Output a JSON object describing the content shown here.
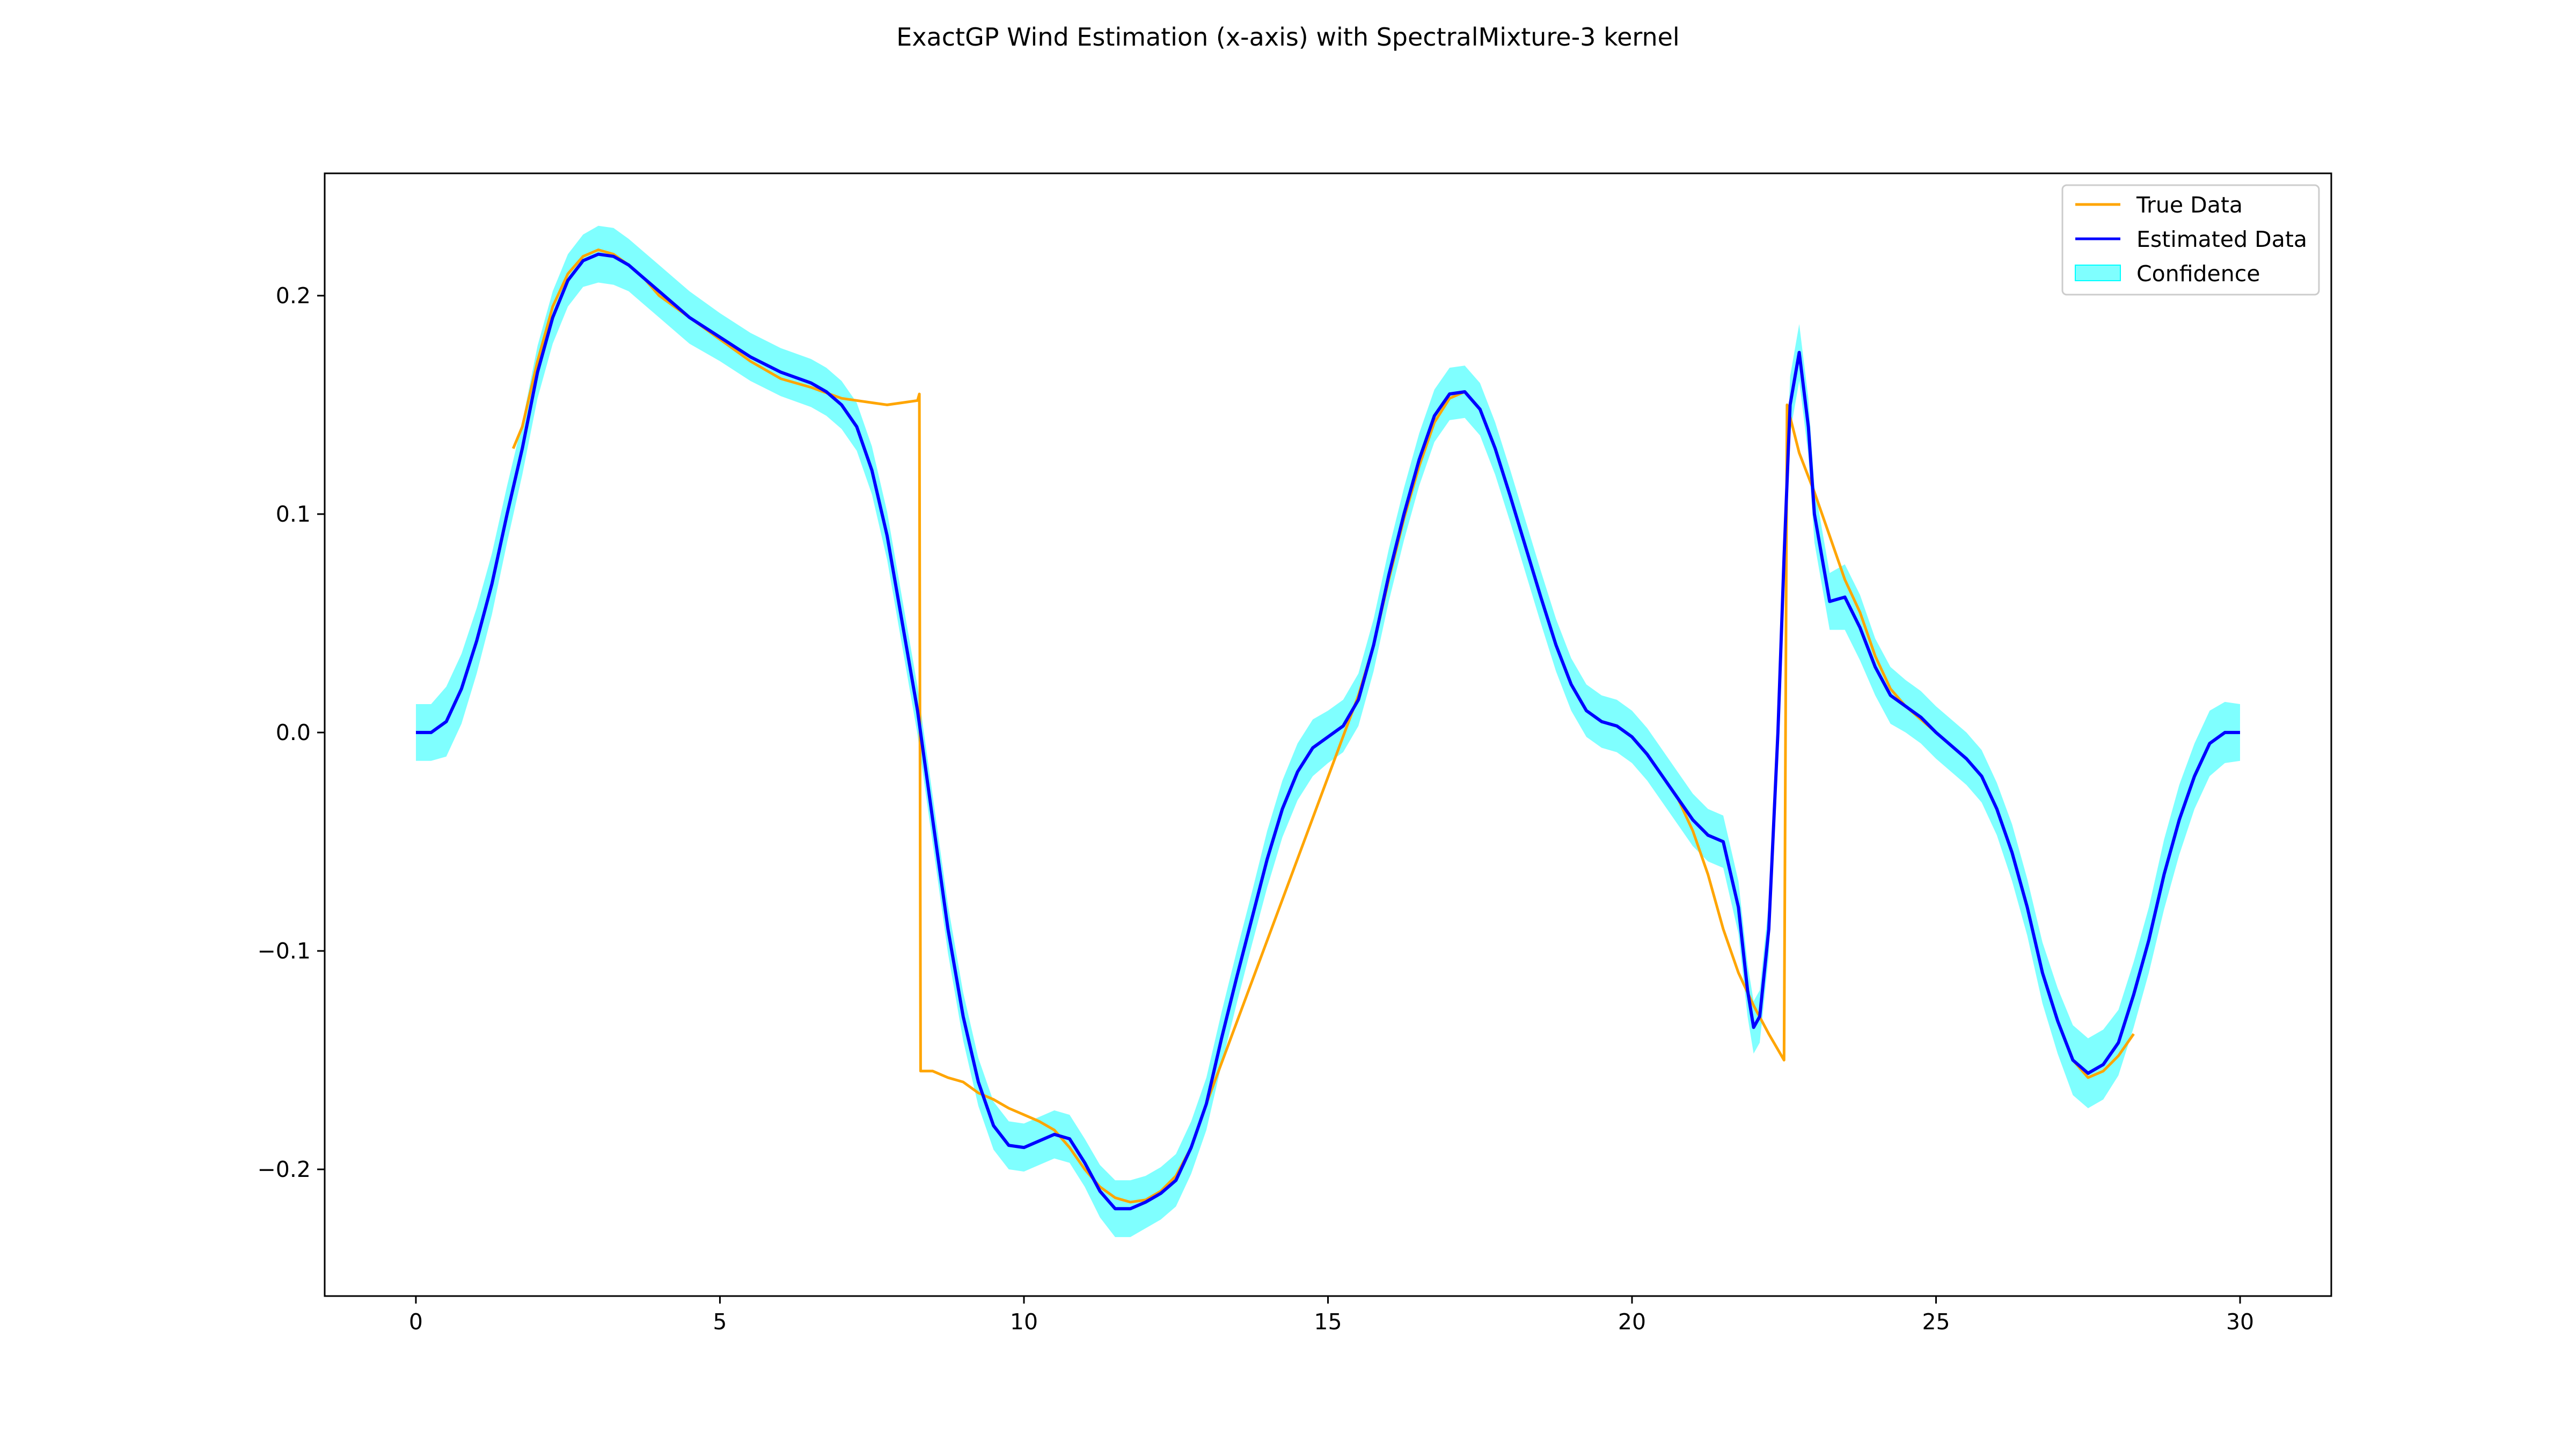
{
  "chart_data": {
    "type": "line",
    "title": "ExactGP Wind Estimation (x-axis) with SpectralMixture-3 kernel",
    "xlabel": "",
    "ylabel": "",
    "xlim": [
      -1.5,
      31.5
    ],
    "ylim": [
      -0.258,
      0.256
    ],
    "xticks": [
      0,
      5,
      10,
      15,
      20,
      25,
      30
    ],
    "xtick_labels": [
      "0",
      "5",
      "10",
      "15",
      "20",
      "25",
      "30"
    ],
    "yticks": [
      -0.2,
      -0.1,
      0.0,
      0.1,
      0.2
    ],
    "ytick_labels": [
      "−0.2",
      "−0.1",
      "0.0",
      "0.1",
      "0.2"
    ],
    "grid": false,
    "legend": {
      "position": "top-right",
      "entries": [
        "True Data",
        "Estimated Data",
        "Confidence"
      ]
    },
    "series": [
      {
        "name": "Estimated Data",
        "kind": "line",
        "color": "#0000ff",
        "x": [
          0.0,
          0.25,
          0.5,
          0.75,
          1.0,
          1.25,
          1.5,
          1.75,
          2.0,
          2.25,
          2.5,
          2.75,
          3.0,
          3.25,
          3.5,
          3.75,
          4.0,
          4.5,
          5.0,
          5.5,
          6.0,
          6.5,
          6.75,
          7.0,
          7.25,
          7.5,
          7.75,
          8.0,
          8.25,
          8.5,
          8.75,
          9.0,
          9.25,
          9.5,
          9.75,
          10.0,
          10.25,
          10.5,
          10.75,
          11.0,
          11.25,
          11.5,
          11.75,
          12.0,
          12.25,
          12.5,
          12.75,
          13.0,
          13.25,
          13.5,
          13.75,
          14.0,
          14.25,
          14.5,
          14.75,
          15.0,
          15.25,
          15.5,
          15.75,
          16.0,
          16.25,
          16.5,
          16.75,
          17.0,
          17.25,
          17.5,
          17.75,
          18.0,
          18.25,
          18.5,
          18.75,
          19.0,
          19.25,
          19.5,
          19.75,
          20.0,
          20.25,
          20.5,
          20.75,
          21.0,
          21.25,
          21.5,
          21.75,
          21.9,
          22.0,
          22.1,
          22.25,
          22.4,
          22.5,
          22.6,
          22.75,
          22.9,
          23.0,
          23.25,
          23.5,
          23.75,
          24.0,
          24.25,
          24.5,
          24.75,
          25.0,
          25.25,
          25.5,
          25.75,
          26.0,
          26.25,
          26.5,
          26.75,
          27.0,
          27.25,
          27.5,
          27.75,
          28.0,
          28.25,
          28.5,
          28.75,
          29.0,
          29.25,
          29.5,
          29.75,
          30.0
        ],
        "y": [
          0.0,
          0.0,
          0.005,
          0.02,
          0.042,
          0.068,
          0.1,
          0.13,
          0.165,
          0.19,
          0.207,
          0.216,
          0.219,
          0.218,
          0.214,
          0.208,
          0.202,
          0.19,
          0.181,
          0.172,
          0.165,
          0.16,
          0.156,
          0.15,
          0.14,
          0.12,
          0.09,
          0.05,
          0.01,
          -0.04,
          -0.09,
          -0.13,
          -0.16,
          -0.18,
          -0.189,
          -0.19,
          -0.187,
          -0.184,
          -0.186,
          -0.197,
          -0.21,
          -0.218,
          -0.218,
          -0.215,
          -0.211,
          -0.205,
          -0.19,
          -0.17,
          -0.14,
          -0.112,
          -0.085,
          -0.058,
          -0.035,
          -0.018,
          -0.007,
          -0.002,
          0.003,
          0.015,
          0.04,
          0.072,
          0.1,
          0.125,
          0.145,
          0.155,
          0.156,
          0.148,
          0.13,
          0.108,
          0.085,
          0.062,
          0.04,
          0.022,
          0.01,
          0.005,
          0.003,
          -0.002,
          -0.01,
          -0.02,
          -0.03,
          -0.04,
          -0.047,
          -0.05,
          -0.08,
          -0.118,
          -0.135,
          -0.13,
          -0.09,
          0.0,
          0.08,
          0.15,
          0.174,
          0.14,
          0.1,
          0.06,
          0.062,
          0.048,
          0.03,
          0.017,
          0.012,
          0.007,
          0.0,
          -0.006,
          -0.012,
          -0.02,
          -0.035,
          -0.055,
          -0.08,
          -0.11,
          -0.132,
          -0.15,
          -0.156,
          -0.152,
          -0.142,
          -0.12,
          -0.095,
          -0.065,
          -0.04,
          -0.02,
          -0.005,
          0.0,
          0.0
        ]
      },
      {
        "name": "True Data",
        "kind": "line",
        "color": "#ffa500",
        "segments": [
          {
            "x": [
              1.6,
              1.75,
              2.0,
              2.25,
              2.5,
              2.75,
              3.0,
              3.25,
              3.5,
              3.75,
              4.0,
              4.5,
              5.0,
              5.5,
              6.0,
              6.5,
              7.0,
              7.25,
              7.5,
              7.75,
              8.0,
              8.25,
              8.28
            ],
            "y": [
              0.13,
              0.14,
              0.17,
              0.195,
              0.21,
              0.218,
              0.221,
              0.219,
              0.214,
              0.208,
              0.2,
              0.19,
              0.18,
              0.17,
              0.162,
              0.158,
              0.153,
              0.152,
              0.151,
              0.15,
              0.151,
              0.152,
              0.155
            ]
          },
          {
            "x": [
              8.3,
              8.5,
              8.75,
              9.0,
              9.25,
              9.5,
              9.75,
              10.0,
              10.25,
              10.5,
              10.75,
              11.0,
              11.25,
              11.5,
              11.75,
              12.0,
              12.25,
              12.5,
              12.75,
              13.0
            ],
            "y": [
              -0.155,
              -0.155,
              -0.158,
              -0.16,
              -0.165,
              -0.168,
              -0.172,
              -0.175,
              -0.178,
              -0.182,
              -0.19,
              -0.2,
              -0.208,
              -0.213,
              -0.215,
              -0.214,
              -0.21,
              -0.203,
              -0.19,
              -0.17
            ]
          },
          {
            "x": [
              15.5,
              15.75,
              16.0,
              16.25,
              16.5,
              16.75,
              17.0,
              17.25,
              17.5,
              17.75,
              18.0,
              18.25,
              18.5,
              18.75,
              19.0,
              19.25,
              19.5,
              19.75,
              20.0,
              20.25,
              20.5,
              20.75,
              21.0,
              21.25,
              21.5,
              21.75,
              22.0,
              22.25,
              22.5
            ],
            "y": [
              0.017,
              0.04,
              0.07,
              0.098,
              0.122,
              0.142,
              0.153,
              0.156,
              0.148,
              0.13,
              0.108,
              0.085,
              0.062,
              0.04,
              0.022,
              0.01,
              0.005,
              0.003,
              -0.002,
              -0.01,
              -0.02,
              -0.03,
              -0.045,
              -0.065,
              -0.09,
              -0.11,
              -0.125,
              -0.138,
              -0.15
            ]
          },
          {
            "x": [
              22.55,
              22.75,
              23.0,
              23.25,
              23.5,
              23.75,
              24.0,
              24.25,
              24.5,
              24.75,
              25.0,
              25.25,
              25.5,
              25.75,
              26.0,
              26.25,
              26.5,
              26.75,
              27.0,
              27.25,
              27.5,
              27.75,
              28.0,
              28.25
            ],
            "y": [
              0.15,
              0.128,
              0.11,
              0.09,
              0.07,
              0.055,
              0.035,
              0.02,
              0.012,
              0.006,
              0.0,
              -0.006,
              -0.012,
              -0.02,
              -0.035,
              -0.055,
              -0.08,
              -0.11,
              -0.132,
              -0.15,
              -0.158,
              -0.155,
              -0.148,
              -0.138
            ]
          }
        ]
      }
    ],
    "confidence_band": {
      "name": "Confidence",
      "color": "#00ffff",
      "opacity": 0.5,
      "half_width": [
        0.013,
        0.013,
        0.016,
        0.016,
        0.015,
        0.014,
        0.013,
        0.012,
        0.012,
        0.012,
        0.012,
        0.012,
        0.013,
        0.013,
        0.012,
        0.012,
        0.012,
        0.012,
        0.011,
        0.011,
        0.011,
        0.011,
        0.011,
        0.011,
        0.011,
        0.011,
        0.011,
        0.011,
        0.011,
        0.011,
        0.011,
        0.011,
        0.011,
        0.011,
        0.011,
        0.011,
        0.011,
        0.011,
        0.011,
        0.011,
        0.012,
        0.013,
        0.013,
        0.012,
        0.012,
        0.012,
        0.012,
        0.012,
        0.012,
        0.012,
        0.012,
        0.013,
        0.013,
        0.013,
        0.013,
        0.012,
        0.012,
        0.012,
        0.012,
        0.012,
        0.012,
        0.012,
        0.012,
        0.012,
        0.012,
        0.012,
        0.012,
        0.012,
        0.012,
        0.012,
        0.012,
        0.012,
        0.012,
        0.012,
        0.012,
        0.012,
        0.012,
        0.012,
        0.012,
        0.012,
        0.012,
        0.012,
        0.012,
        0.012,
        0.012,
        0.012,
        0.012,
        0.012,
        0.012,
        0.013,
        0.013,
        0.013,
        0.013,
        0.013,
        0.015,
        0.015,
        0.013,
        0.013,
        0.012,
        0.012,
        0.012,
        0.012,
        0.012,
        0.012,
        0.012,
        0.013,
        0.013,
        0.014,
        0.015,
        0.016,
        0.016,
        0.016,
        0.015,
        0.015,
        0.015,
        0.016,
        0.016,
        0.015,
        0.015,
        0.014,
        0.013
      ]
    }
  }
}
